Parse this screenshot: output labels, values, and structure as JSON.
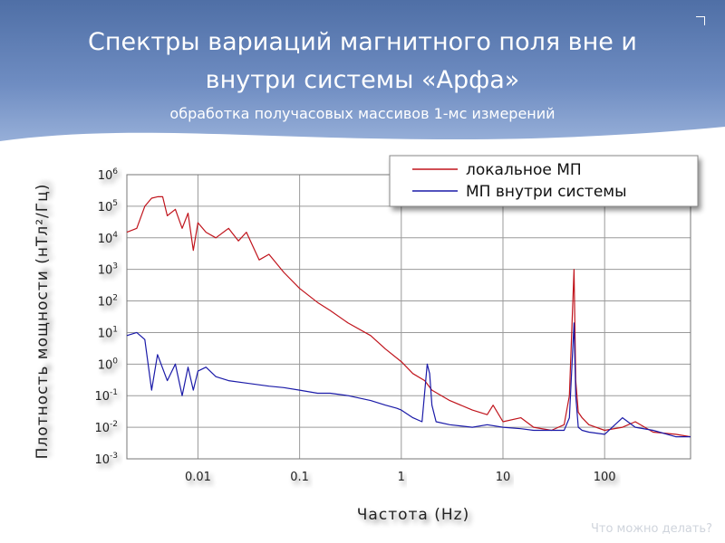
{
  "slide": {
    "title_line1": "Спектры вариаций магнитного поля вне и",
    "title_line2": "внутри системы «Арфа»",
    "subtitle": "обработка получасовых массивов 1-мс измерений",
    "footer": "Что можно делать?"
  },
  "colors": {
    "local": "#c0141c",
    "inside": "#1a1aa8",
    "grid": "#9a9a9a"
  },
  "chart_data": {
    "type": "line",
    "x_scale": "log",
    "y_scale": "log",
    "xlim": [
      0.002,
      700
    ],
    "ylim": [
      0.001,
      1000000
    ],
    "xlabel": "Частота (Hz)",
    "ylabel": "Плотность мощности (нТл²/Гц)",
    "x_ticks": [
      {
        "value": 0.01,
        "label": "0.01"
      },
      {
        "value": 0.1,
        "label": "0.1"
      },
      {
        "value": 1,
        "label": "1"
      },
      {
        "value": 10,
        "label": "10"
      },
      {
        "value": 100,
        "label": "100"
      }
    ],
    "y_ticks": [
      {
        "value": 1000000,
        "base": "10",
        "exp": "6"
      },
      {
        "value": 100000,
        "base": "10",
        "exp": "5"
      },
      {
        "value": 10000,
        "base": "10",
        "exp": "4"
      },
      {
        "value": 1000,
        "base": "10",
        "exp": "3"
      },
      {
        "value": 100,
        "base": "10",
        "exp": "2"
      },
      {
        "value": 10,
        "base": "10",
        "exp": "1"
      },
      {
        "value": 1,
        "base": "10",
        "exp": "0"
      },
      {
        "value": 0.1,
        "base": "10",
        "exp": "-1"
      },
      {
        "value": 0.01,
        "base": "10",
        "exp": "-2"
      },
      {
        "value": 0.001,
        "base": "10",
        "exp": "-3"
      }
    ],
    "grid": true,
    "legend_position": "top-right",
    "series": [
      {
        "name": "локальное МП",
        "color": "#c0141c",
        "x": [
          0.002,
          0.0025,
          0.003,
          0.0035,
          0.004,
          0.0045,
          0.005,
          0.006,
          0.007,
          0.008,
          0.009,
          0.01,
          0.012,
          0.015,
          0.02,
          0.025,
          0.03,
          0.04,
          0.05,
          0.07,
          0.1,
          0.15,
          0.2,
          0.3,
          0.5,
          0.7,
          1,
          1.3,
          1.7,
          2,
          3,
          5,
          7,
          8,
          10,
          15,
          20,
          30,
          40,
          45,
          50,
          52,
          55,
          60,
          70,
          100,
          150,
          200,
          300,
          500,
          700
        ],
        "y": [
          15000,
          20000,
          100000,
          180000,
          200000,
          200000,
          50000,
          80000,
          20000,
          60000,
          4000,
          30000,
          15000,
          10000,
          20000,
          8000,
          15000,
          2000,
          3000,
          800,
          250,
          90,
          50,
          20,
          8,
          3,
          1.2,
          0.5,
          0.3,
          0.15,
          0.07,
          0.035,
          0.025,
          0.05,
          0.015,
          0.02,
          0.01,
          0.008,
          0.012,
          0.1,
          1000,
          0.3,
          0.03,
          0.02,
          0.012,
          0.008,
          0.01,
          0.015,
          0.007,
          0.006,
          0.005
        ]
      },
      {
        "name": "МП внутри системы",
        "color": "#1a1aa8",
        "x": [
          0.002,
          0.0025,
          0.003,
          0.0035,
          0.004,
          0.005,
          0.006,
          0.007,
          0.008,
          0.009,
          0.01,
          0.012,
          0.015,
          0.02,
          0.03,
          0.05,
          0.07,
          0.1,
          0.15,
          0.2,
          0.3,
          0.5,
          0.7,
          0.9,
          1,
          1.3,
          1.6,
          1.8,
          1.9,
          2,
          2.2,
          3,
          5,
          7,
          10,
          15,
          20,
          30,
          40,
          45,
          50,
          52,
          55,
          60,
          70,
          100,
          150,
          200,
          300,
          500,
          700
        ],
        "y": [
          8,
          10,
          6,
          0.15,
          2,
          0.3,
          1,
          0.1,
          0.8,
          0.15,
          0.6,
          0.8,
          0.4,
          0.3,
          0.25,
          0.2,
          0.18,
          0.15,
          0.12,
          0.12,
          0.1,
          0.07,
          0.05,
          0.04,
          0.035,
          0.02,
          0.015,
          1,
          0.5,
          0.05,
          0.015,
          0.012,
          0.01,
          0.012,
          0.01,
          0.009,
          0.008,
          0.008,
          0.008,
          0.02,
          20,
          0.1,
          0.01,
          0.008,
          0.007,
          0.006,
          0.02,
          0.01,
          0.008,
          0.005,
          0.005
        ]
      }
    ]
  }
}
